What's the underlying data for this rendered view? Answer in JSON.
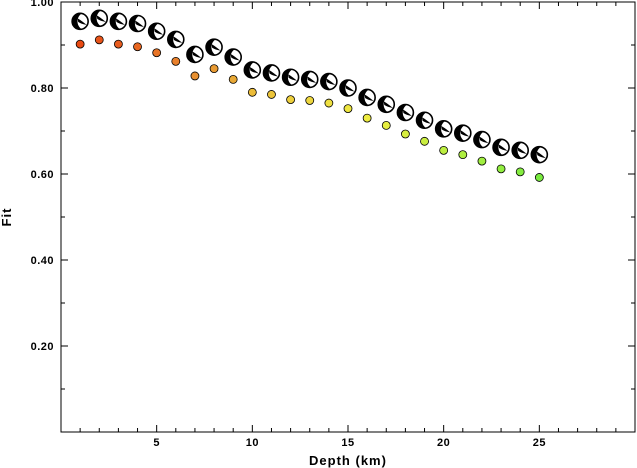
{
  "chart_data": {
    "type": "scatter",
    "title": "",
    "xlabel": "Depth (km)",
    "ylabel": "Fit",
    "xlim": [
      0,
      30
    ],
    "ylim": [
      0,
      1.0
    ],
    "grid": false,
    "x_ticks": [
      5,
      10,
      15,
      20,
      25
    ],
    "x_tick_labels": [
      "5",
      "10",
      "15",
      "20",
      "25"
    ],
    "y_ticks": [
      0.2,
      0.4,
      0.6,
      0.8,
      1.0
    ],
    "y_tick_labels": [
      "0.20",
      "0.40",
      "0.60",
      "0.80",
      "1.00"
    ],
    "series": [
      {
        "marker": "beachball",
        "x": [
          1,
          2,
          3,
          4,
          5,
          6,
          7,
          8,
          9,
          10,
          11,
          12,
          13,
          14,
          15,
          16,
          17,
          18,
          19,
          20,
          21,
          22,
          23,
          24,
          25
        ],
        "y": [
          0.955,
          0.962,
          0.955,
          0.95,
          0.932,
          0.913,
          0.878,
          0.895,
          0.872,
          0.842,
          0.835,
          0.825,
          0.82,
          0.815,
          0.8,
          0.778,
          0.762,
          0.743,
          0.725,
          0.705,
          0.695,
          0.68,
          0.662,
          0.655,
          0.645
        ]
      },
      {
        "marker": "dot",
        "x": [
          1,
          2,
          3,
          4,
          5,
          6,
          7,
          8,
          9,
          10,
          11,
          12,
          13,
          14,
          15,
          16,
          17,
          18,
          19,
          20,
          21,
          22,
          23,
          24,
          25
        ],
        "y": [
          0.902,
          0.912,
          0.902,
          0.896,
          0.882,
          0.862,
          0.828,
          0.845,
          0.82,
          0.79,
          0.785,
          0.773,
          0.771,
          0.765,
          0.752,
          0.73,
          0.713,
          0.693,
          0.676,
          0.655,
          0.645,
          0.63,
          0.612,
          0.605,
          0.592
        ],
        "colors": [
          "#e84a12",
          "#e8541a",
          "#e85c1e",
          "#e86620",
          "#e87426",
          "#e8802c",
          "#e89030",
          "#e89a32",
          "#e8a835",
          "#ecbc38",
          "#ecc43a",
          "#edcf3c",
          "#edd63e",
          "#eedf40",
          "#eee640",
          "#eeec40",
          "#e6ee40",
          "#d8ee40",
          "#caee40",
          "#bcee40",
          "#aeee40",
          "#a0ee40",
          "#92ee40",
          "#84ec40",
          "#78ea3e"
        ]
      }
    ]
  }
}
